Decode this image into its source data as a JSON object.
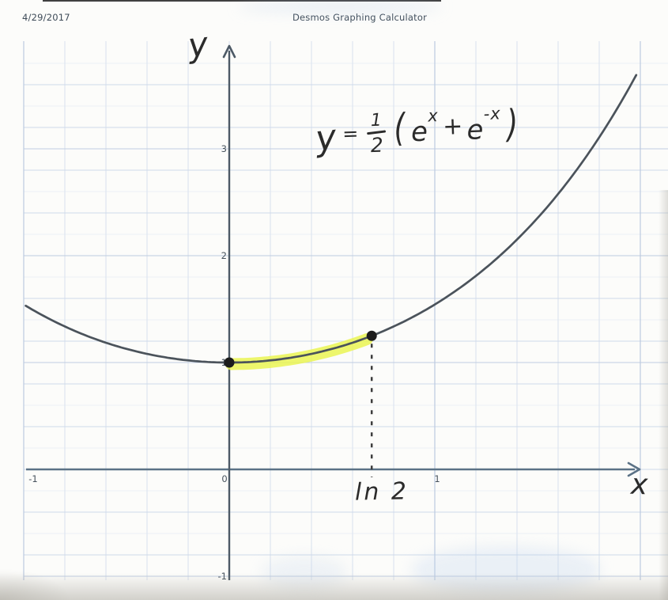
{
  "page": {
    "date": "4/29/2017",
    "title": "Desmos Graphing Calculator"
  },
  "chart_data": {
    "type": "line",
    "title": "",
    "function": "y = (1/2)(e^x + e^-x)",
    "function_equivalent": "y = cosh(x)",
    "x_domain_drawn": [
      -0.99,
      1.99
    ],
    "x_axis": {
      "label": "x",
      "tick_values": [
        -1,
        0,
        1
      ],
      "tick_labels": [
        "-1",
        "0",
        "1"
      ],
      "range_shown": [
        -1.12,
        2.13
      ]
    },
    "y_axis": {
      "label": "y",
      "tick_values": [
        3,
        2,
        1,
        -1
      ],
      "tick_labels": [
        "3",
        "2",
        "1",
        "-1"
      ],
      "range_shown": [
        -1.2,
        4.0
      ]
    },
    "grid": {
      "minor_step": 0.2,
      "major_step": 1,
      "grid_on": true
    },
    "points": [
      {
        "x": 0,
        "y": 1,
        "label": ""
      },
      {
        "x": 0.6931,
        "y": 1.25,
        "label": "ln 2"
      }
    ],
    "highlight_interval": {
      "from": 0,
      "to": 0.6931,
      "description": "arc of curve highlighted yellow between x=0 and x=ln 2"
    },
    "dashed_line": {
      "x": 0.6931,
      "from_y": 1.25,
      "to_y": 0
    },
    "colors": {
      "curve": "#4b535b",
      "highlight": "#e9f44d",
      "grid_minor_strong": "#ccd9ea",
      "grid_minor_faint": "#dee7f2",
      "grid_major": "#bccadf",
      "x_axis": "#5b7286",
      "y_axis": "#4d5a66",
      "tick_text": "#47525d",
      "dot": "#1c1c1c",
      "dashed": "#3c3c3c"
    }
  },
  "annotations": {
    "equation": {
      "lhs": "y",
      "equals": "=",
      "frac_num": "1",
      "frac_den": "2",
      "open_paren": "(",
      "e1": "e",
      "sup1": "x",
      "plus": "+",
      "e2": "e",
      "sup2": "-x",
      "close_paren": ")"
    },
    "ln2_label": "ln 2",
    "x_axis_letter": "x",
    "y_axis_letter": "y"
  }
}
